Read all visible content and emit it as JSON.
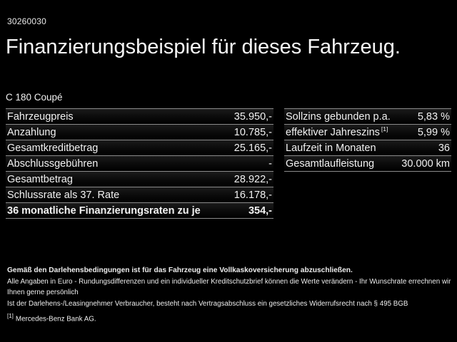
{
  "page_id": "30260030",
  "title": "Finanzierungsbeispiel für dieses Fahrzeug.",
  "model": "C 180 Coupé",
  "colors": {
    "background": "#000000",
    "text": "#f2f2f2",
    "separator": "#8b8b8b"
  },
  "tables": {
    "left": {
      "rows": [
        {
          "label": "Fahrzeugpreis",
          "value": "35.950,-"
        },
        {
          "label": "Anzahlung",
          "value": "10.785,-"
        },
        {
          "label": "Gesamtkreditbetrag",
          "value": "25.165,-"
        },
        {
          "label": "Abschlussgebühren",
          "value": "-"
        },
        {
          "label": "Gesamtbetrag",
          "value": "28.922,-"
        },
        {
          "label": "Schlussrate als 37. Rate",
          "value": "16.178,-"
        },
        {
          "label": "36 monatliche Finanzierungsraten zu je",
          "value": "354,-"
        }
      ]
    },
    "right": {
      "rows": [
        {
          "label": "Sollzins gebunden p.a.",
          "sup": "",
          "value": "5,83 %"
        },
        {
          "label": "effektiver Jahreszins",
          "sup": "[1]",
          "value": "5,99 %"
        },
        {
          "label": "Laufzeit in Monaten",
          "sup": "",
          "value": "36"
        },
        {
          "label": "Gesamtlaufleistung",
          "sup": "",
          "value": "30.000 km"
        }
      ]
    }
  },
  "footer": {
    "line1": "Gemäß den Darlehensbedingungen ist für das Fahrzeug eine Vollkaskoversicherung abzuschließen.",
    "line2": "Alle Angaben in Euro - Rundungsdifferenzen und ein individueller Kreditschutzbrief können die Werte verändern - Ihr Wunschrate errechnen wir Ihnen gerne persönlich",
    "line3": "Ist der Darlehens-/Leasingnehmer Verbraucher, besteht nach Vertragsabschluss ein gesetzliches Widerrufsrecht nach § 495 BGB",
    "footnote_marker": "[1]",
    "footnote_text": "Mercedes-Benz Bank AG."
  }
}
